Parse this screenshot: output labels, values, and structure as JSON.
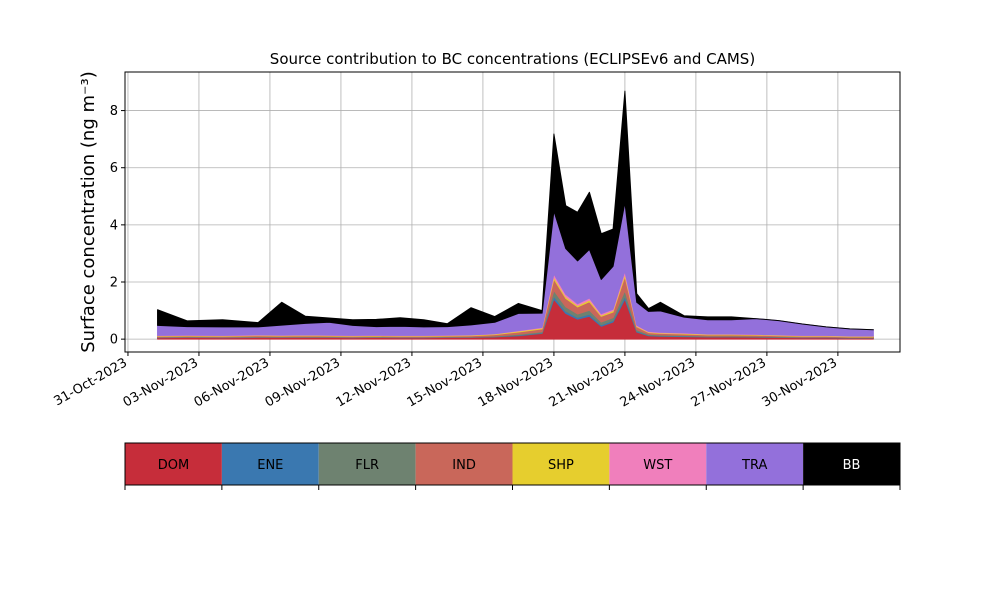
{
  "chart_data": {
    "type": "area",
    "stacked": true,
    "title": "Source contribution to BC concentrations (ECLIPSEv6 and CAMS)",
    "ylabel": "Surface concentration (ng m⁻³)",
    "xlabel": "",
    "ylim": [
      -0.45,
      9.35
    ],
    "xlim": [
      "2023-10-30T21:00",
      "2023-12-02T15:00"
    ],
    "yticks": [
      0,
      2,
      4,
      6,
      8
    ],
    "xticks": [
      "31-Oct-2023",
      "03-Nov-2023",
      "06-Nov-2023",
      "09-Nov-2023",
      "12-Nov-2023",
      "15-Nov-2023",
      "18-Nov-2023",
      "21-Nov-2023",
      "24-Nov-2023",
      "27-Nov-2023",
      "30-Nov-2023"
    ],
    "grid": true,
    "x": [
      "2023-11-01T06:00",
      "2023-11-02T12:00",
      "2023-11-04T00:00",
      "2023-11-05T12:00",
      "2023-11-06T12:00",
      "2023-11-07T12:00",
      "2023-11-08T12:00",
      "2023-11-09T12:00",
      "2023-11-10T12:00",
      "2023-11-11T12:00",
      "2023-11-12T12:00",
      "2023-11-13T12:00",
      "2023-11-14T12:00",
      "2023-11-15T12:00",
      "2023-11-16T12:00",
      "2023-11-17T12:00",
      "2023-11-18T00:00",
      "2023-11-18T12:00",
      "2023-11-19T00:00",
      "2023-11-19T12:00",
      "2023-11-20T00:00",
      "2023-11-20T12:00",
      "2023-11-21T00:00",
      "2023-11-21T12:00",
      "2023-11-22T00:00",
      "2023-11-22T12:00",
      "2023-11-23T12:00",
      "2023-11-24T12:00",
      "2023-11-25T12:00",
      "2023-11-26T12:00",
      "2023-11-27T12:00",
      "2023-11-28T12:00",
      "2023-11-29T12:00",
      "2023-11-30T12:00",
      "2023-12-01T12:00"
    ],
    "series": [
      {
        "name": "DOM",
        "color": "#c62d3a",
        "values": [
          0.05,
          0.06,
          0.05,
          0.06,
          0.06,
          0.06,
          0.06,
          0.05,
          0.06,
          0.05,
          0.05,
          0.06,
          0.06,
          0.08,
          0.12,
          0.2,
          1.4,
          0.9,
          0.7,
          0.8,
          0.45,
          0.6,
          1.4,
          0.25,
          0.12,
          0.1,
          0.09,
          0.08,
          0.08,
          0.07,
          0.06,
          0.05,
          0.05,
          0.04,
          0.04
        ]
      },
      {
        "name": "ENE",
        "color": "#3a78b0",
        "values": [
          0.01,
          0.01,
          0.01,
          0.01,
          0.01,
          0.01,
          0.01,
          0.01,
          0.01,
          0.01,
          0.01,
          0.01,
          0.01,
          0.01,
          0.02,
          0.02,
          0.1,
          0.08,
          0.06,
          0.07,
          0.05,
          0.05,
          0.1,
          0.03,
          0.02,
          0.02,
          0.02,
          0.01,
          0.01,
          0.01,
          0.01,
          0.01,
          0.01,
          0.01,
          0.01
        ]
      },
      {
        "name": "FLR",
        "color": "#6e8270",
        "values": [
          0.01,
          0.01,
          0.01,
          0.01,
          0.01,
          0.01,
          0.01,
          0.01,
          0.01,
          0.01,
          0.01,
          0.01,
          0.01,
          0.02,
          0.03,
          0.04,
          0.2,
          0.15,
          0.12,
          0.14,
          0.1,
          0.1,
          0.2,
          0.05,
          0.03,
          0.03,
          0.02,
          0.02,
          0.02,
          0.02,
          0.02,
          0.01,
          0.01,
          0.01,
          0.01
        ]
      },
      {
        "name": "IND",
        "color": "#c9675a",
        "values": [
          0.03,
          0.03,
          0.03,
          0.04,
          0.03,
          0.04,
          0.03,
          0.03,
          0.03,
          0.03,
          0.03,
          0.03,
          0.04,
          0.05,
          0.08,
          0.1,
          0.4,
          0.3,
          0.25,
          0.3,
          0.2,
          0.2,
          0.5,
          0.1,
          0.06,
          0.05,
          0.05,
          0.04,
          0.04,
          0.04,
          0.03,
          0.03,
          0.03,
          0.02,
          0.02
        ]
      },
      {
        "name": "SHP",
        "color": "#e6ce2e",
        "values": [
          0.02,
          0.02,
          0.02,
          0.02,
          0.02,
          0.02,
          0.02,
          0.02,
          0.02,
          0.02,
          0.02,
          0.02,
          0.02,
          0.02,
          0.03,
          0.03,
          0.08,
          0.06,
          0.05,
          0.06,
          0.04,
          0.05,
          0.08,
          0.03,
          0.02,
          0.02,
          0.02,
          0.02,
          0.02,
          0.02,
          0.02,
          0.02,
          0.02,
          0.02,
          0.02
        ]
      },
      {
        "name": "WST",
        "color": "#f07fbc",
        "values": [
          0.01,
          0.01,
          0.01,
          0.01,
          0.01,
          0.01,
          0.01,
          0.01,
          0.01,
          0.01,
          0.01,
          0.01,
          0.01,
          0.01,
          0.02,
          0.02,
          0.1,
          0.08,
          0.06,
          0.07,
          0.05,
          0.05,
          0.1,
          0.03,
          0.02,
          0.02,
          0.02,
          0.01,
          0.01,
          0.01,
          0.01,
          0.01,
          0.01,
          0.01,
          0.01
        ]
      },
      {
        "name": "TRA",
        "color": "#9370db",
        "values": [
          0.35,
          0.3,
          0.3,
          0.28,
          0.35,
          0.4,
          0.45,
          0.35,
          0.3,
          0.32,
          0.3,
          0.3,
          0.35,
          0.4,
          0.6,
          0.5,
          2.2,
          1.6,
          1.5,
          1.7,
          1.2,
          1.5,
          2.4,
          0.8,
          0.7,
          0.75,
          0.55,
          0.5,
          0.5,
          0.55,
          0.5,
          0.4,
          0.3,
          0.25,
          0.22
        ]
      },
      {
        "name": "BB",
        "color": "#000000",
        "values": [
          0.55,
          0.2,
          0.25,
          0.15,
          0.8,
          0.25,
          0.15,
          0.2,
          0.25,
          0.3,
          0.25,
          0.1,
          0.6,
          0.2,
          0.35,
          0.09,
          2.7,
          1.5,
          1.7,
          2.0,
          1.6,
          1.3,
          3.9,
          0.3,
          0.1,
          0.3,
          0.05,
          0.1,
          0.1,
          0.0,
          0.0,
          0.0,
          0.0,
          0.0,
          0.0
        ]
      }
    ],
    "legend": {
      "placement": "below",
      "items": [
        "DOM",
        "ENE",
        "FLR",
        "IND",
        "SHP",
        "WST",
        "TRA",
        "BB"
      ]
    }
  }
}
